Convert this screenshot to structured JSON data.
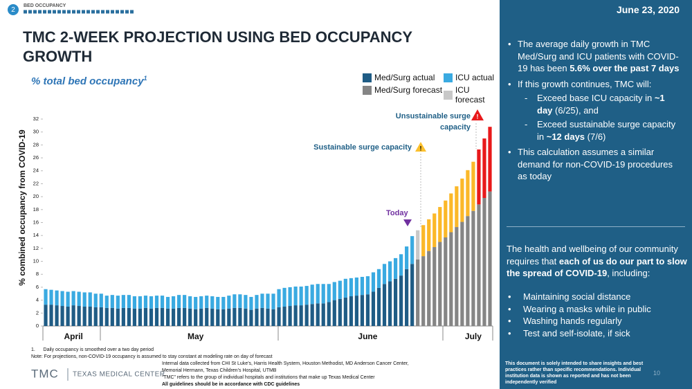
{
  "header": {
    "slide_number": "2",
    "section": "BED OCCUPANCY",
    "title": "TMC 2-WEEK PROJECTION USING BED OCCUPANCY GROWTH",
    "subtitle": "% total bed occupancy",
    "subtitle_note": "1"
  },
  "chart_data": {
    "type": "stacked-bar",
    "y_label": "% combined occupancy from COVID-19",
    "ylim": [
      0,
      32
    ],
    "yticks": [
      0,
      2,
      4,
      6,
      8,
      10,
      12,
      14,
      16,
      18,
      20,
      22,
      24,
      26,
      28,
      30,
      32
    ],
    "legend": "top-right",
    "categories": [
      null,
      null,
      null,
      null,
      null,
      "April",
      null,
      null,
      null,
      null,
      null,
      null,
      null,
      null,
      null,
      null,
      null,
      null,
      null,
      null,
      null,
      null,
      null,
      null,
      null,
      null,
      null,
      "May",
      null,
      null,
      null,
      null,
      null,
      null,
      null,
      null,
      null,
      null,
      null,
      null,
      null,
      null,
      null,
      null,
      null,
      null,
      null,
      null,
      null,
      null,
      null,
      null,
      null,
      null,
      null,
      null,
      null,
      null,
      "June",
      null,
      null,
      null,
      null,
      null,
      null,
      null,
      null,
      null,
      null,
      null,
      null,
      null,
      null,
      null,
      null,
      null,
      null,
      "July",
      null,
      null,
      null
    ],
    "series": [
      {
        "name": "Med/Surg actual",
        "color": "#1f5c85",
        "values": [
          3.3,
          3.3,
          3.2,
          3.1,
          3.0,
          3.2,
          3.1,
          3.0,
          3.0,
          2.9,
          2.9,
          2.8,
          2.8,
          2.7,
          2.8,
          2.8,
          2.7,
          2.7,
          2.8,
          2.7,
          2.8,
          2.8,
          2.7,
          2.7,
          2.8,
          2.8,
          2.7,
          2.6,
          2.7,
          2.8,
          2.7,
          2.6,
          2.6,
          2.7,
          2.8,
          2.8,
          2.7,
          2.5,
          2.7,
          2.8,
          2.7,
          2.6,
          2.9,
          3.0,
          3.1,
          3.2,
          3.2,
          3.3,
          3.4,
          3.5,
          3.5,
          3.7,
          4.0,
          4.2,
          4.4,
          4.6,
          4.7,
          4.8,
          4.9,
          5.3,
          5.9,
          6.5,
          6.9,
          7.3,
          7.8,
          8.8,
          9.6,
          null,
          null,
          null,
          null,
          null,
          null,
          null,
          null,
          null,
          null,
          null,
          null,
          null,
          null
        ]
      },
      {
        "name": "ICU actual",
        "color": "#3aaae1",
        "values": [
          2.4,
          2.3,
          2.3,
          2.3,
          2.3,
          2.2,
          2.2,
          2.2,
          2.2,
          2.1,
          2.1,
          1.9,
          2.0,
          2.0,
          2.0,
          2.0,
          1.9,
          1.9,
          1.9,
          1.9,
          1.9,
          1.9,
          1.8,
          1.9,
          2.0,
          2.0,
          1.9,
          1.9,
          1.9,
          1.9,
          1.9,
          1.9,
          1.9,
          2.0,
          2.1,
          2.1,
          2.1,
          2.0,
          2.1,
          2.2,
          2.3,
          2.4,
          2.8,
          2.9,
          2.9,
          2.9,
          2.9,
          2.9,
          3.0,
          3.0,
          3.0,
          2.8,
          2.8,
          2.8,
          2.9,
          2.8,
          2.8,
          2.8,
          2.8,
          3.0,
          2.9,
          3.1,
          3.1,
          3.2,
          3.3,
          3.5,
          4.3,
          null,
          null,
          null,
          null,
          null,
          null,
          null,
          null,
          null,
          null,
          null,
          null,
          null,
          null
        ]
      },
      {
        "name": "Med/Surg forecast",
        "color": "#858585",
        "values": [
          null,
          null,
          null,
          null,
          null,
          null,
          null,
          null,
          null,
          null,
          null,
          null,
          null,
          null,
          null,
          null,
          null,
          null,
          null,
          null,
          null,
          null,
          null,
          null,
          null,
          null,
          null,
          null,
          null,
          null,
          null,
          null,
          null,
          null,
          null,
          null,
          null,
          null,
          null,
          null,
          null,
          null,
          null,
          null,
          null,
          null,
          null,
          null,
          null,
          null,
          null,
          null,
          null,
          null,
          null,
          null,
          null,
          null,
          null,
          null,
          null,
          null,
          null,
          null,
          null,
          null,
          null,
          10.3,
          10.8,
          11.6,
          12.2,
          13.0,
          13.7,
          14.5,
          15.3,
          16.1,
          17.0,
          17.8,
          18.8,
          19.8,
          20.8
        ]
      },
      {
        "name": "ICU forecast",
        "color": "#c8c8c8",
        "values": [
          null,
          null,
          null,
          null,
          null,
          null,
          null,
          null,
          null,
          null,
          null,
          null,
          null,
          null,
          null,
          null,
          null,
          null,
          null,
          null,
          null,
          null,
          null,
          null,
          null,
          null,
          null,
          null,
          null,
          null,
          null,
          null,
          null,
          null,
          null,
          null,
          null,
          null,
          null,
          null,
          null,
          null,
          null,
          null,
          null,
          null,
          null,
          null,
          null,
          null,
          null,
          null,
          null,
          null,
          null,
          null,
          null,
          null,
          null,
          null,
          null,
          null,
          null,
          null,
          null,
          null,
          null,
          4.5,
          4.8,
          4.9,
          5.2,
          5.4,
          5.7,
          6.0,
          6.3,
          6.7,
          7.1,
          7.6,
          8.5,
          9.2,
          10.0
        ],
        "point_colors": [
          null,
          null,
          null,
          null,
          null,
          null,
          null,
          null,
          null,
          null,
          null,
          null,
          null,
          null,
          null,
          null,
          null,
          null,
          null,
          null,
          null,
          null,
          null,
          null,
          null,
          null,
          null,
          null,
          null,
          null,
          null,
          null,
          null,
          null,
          null,
          null,
          null,
          null,
          null,
          null,
          null,
          null,
          null,
          null,
          null,
          null,
          null,
          null,
          null,
          null,
          null,
          null,
          null,
          null,
          null,
          null,
          null,
          null,
          null,
          null,
          null,
          null,
          null,
          null,
          null,
          null,
          null,
          "#c8c8c8",
          "#fbb829",
          "#fbb829",
          "#fbb829",
          "#fbb829",
          "#fbb829",
          "#fbb829",
          "#fbb829",
          "#fbb829",
          "#fbb829",
          "#fbb829",
          "#e8191b",
          "#e8191b",
          "#e8191b"
        ]
      }
    ],
    "annotations": [
      "Today",
      "Sustainable surge capacity",
      "Unsustainable surge capacity"
    ]
  },
  "footnotes": {
    "number": "1.",
    "note1": "Daily occupancy is smoothed over a two day period",
    "note2": "Note: For projections, non-COVID-19 occupancy is assumed to stay constant at modeling rate on day of forecast",
    "sources": [
      "Internal data collected from CHI St Luke’s, Harris Health System, Houston Methodist, MD Anderson Cancer Center,",
      "Memorial Hermann, Texas Children’s Hospital, UTMB",
      "“TMC” refers to the group of individual hospitals and institutions that make up Texas Medical Center"
    ],
    "cdc": "All guidelines should be in accordance with CDC guidelines"
  },
  "logo": {
    "mark": "TMC",
    "name": "TEXAS MEDICAL CENTER"
  },
  "panel": {
    "date": "June 23, 2020",
    "bullets": [
      [
        "The average daily growth in TMC Med/Surg and ICU patients with COVID-19 has been ",
        "5.6% over the past 7 days"
      ],
      [
        "If this growth continues, TMC will:"
      ],
      [
        "This calculation assumes a similar demand for non-COVID-19 procedures as today"
      ]
    ],
    "sub_bullets": [
      [
        "Exceed base ICU capacity in ",
        "~1 day",
        " (6/25), and"
      ],
      [
        "Exceed sustainable surge capacity in ",
        "~12 days",
        " (7/6)"
      ]
    ],
    "paragraph": [
      "The health and wellbeing of our community requires that ",
      "each of us do our part to slow the spread of COVID-19",
      ", including:"
    ],
    "list": [
      "Maintaining social distance",
      "Wearing a masks while in public",
      "Washing hands regularly",
      "Test and self-isolate, if sick"
    ],
    "disclaimer": "This document is solely intended to share insights and best practices rather than specific recommendations. Individual institution data is shown as reported and has not been independently verified",
    "page": "10"
  }
}
